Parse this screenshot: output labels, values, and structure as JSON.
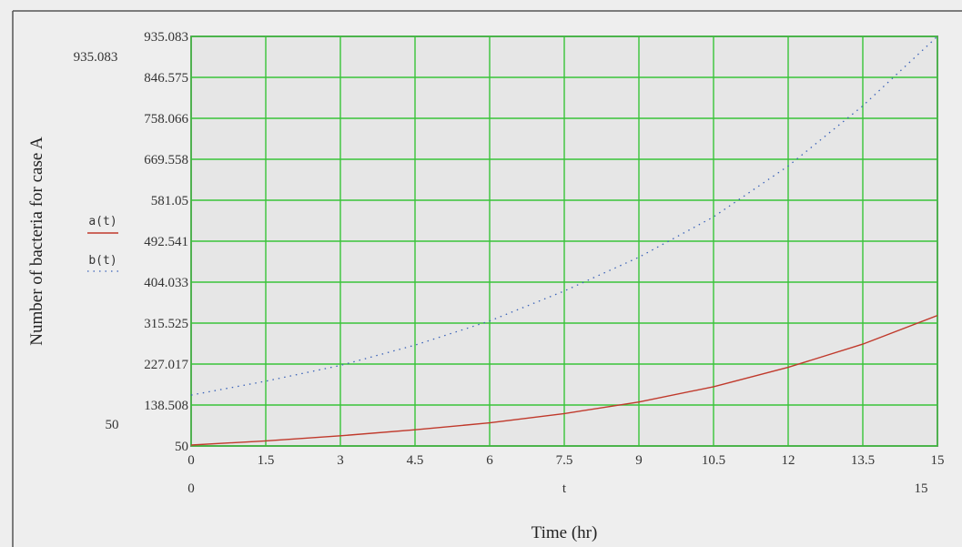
{
  "chart_data": {
    "type": "line",
    "xlabel": "Time (hr)",
    "x_variable_label": "t",
    "ylabel": "Number of bacteria for case A",
    "xlim": [
      0,
      15
    ],
    "ylim": [
      50,
      935.083
    ],
    "xlim_labels": [
      "0",
      "15"
    ],
    "ylim_labels": [
      "50",
      "935.083"
    ],
    "x_ticks": [
      0,
      1.5,
      3,
      4.5,
      6,
      7.5,
      9,
      10.5,
      12,
      13.5,
      15
    ],
    "x_tick_labels": [
      "0",
      "1.5",
      "3",
      "4.5",
      "6",
      "7.5",
      "9",
      "10.5",
      "12",
      "13.5",
      "15"
    ],
    "y_ticks": [
      50,
      138.508,
      227.017,
      315.525,
      404.033,
      492.541,
      581.05,
      669.558,
      758.066,
      846.575,
      935.083
    ],
    "y_tick_labels": [
      "50",
      "138.508",
      "227.017",
      "315.525",
      "404.033",
      "492.541",
      "581.05",
      "669.558",
      "758.066",
      "846.575",
      "935.083"
    ],
    "grid": true,
    "legend_position": "left",
    "series": [
      {
        "name": "a(t)",
        "style": "solid",
        "color": "#c0392b",
        "x": [
          0,
          1.5,
          3,
          4.5,
          6,
          7.5,
          9,
          10.5,
          12,
          13.5,
          15
        ],
        "values": [
          52,
          61,
          72,
          85,
          100,
          120,
          145,
          178,
          220,
          270,
          332
        ]
      },
      {
        "name": "b(t)",
        "style": "dotted",
        "color": "#3a62b8",
        "x": [
          0,
          1.5,
          3,
          4.5,
          6,
          7.5,
          9,
          10.5,
          12,
          13.5,
          15
        ],
        "values": [
          160,
          190,
          224,
          268,
          320,
          385,
          458,
          545,
          655,
          785,
          935
        ]
      }
    ]
  }
}
